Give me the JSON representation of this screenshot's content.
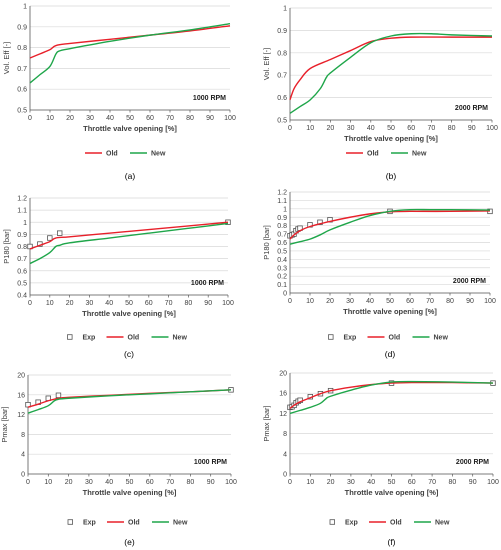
{
  "colors": {
    "old": "#e8202a",
    "new": "#1fa64a",
    "exp": "#555555",
    "grid": "#d9d9d9",
    "axis": "#595959"
  },
  "chart_data": [
    {
      "id": "a",
      "type": "line",
      "caption": "(a)",
      "annotation": "1000 RPM",
      "xlabel": "Throttle valve opening [%]",
      "ylabel": "Vol. Eff [-]",
      "xlim": [
        0,
        100
      ],
      "ylim": [
        0.5,
        1.0
      ],
      "xticks": [
        0,
        10,
        20,
        30,
        40,
        50,
        60,
        70,
        80,
        90,
        100
      ],
      "yticks": [
        0.5,
        0.6,
        0.7,
        0.8,
        0.9,
        1.0
      ],
      "ytick_labels": [
        "0.5",
        "0.6",
        "0.7",
        "0.8",
        "0.9",
        "1"
      ],
      "legend": [
        "Old",
        "New"
      ],
      "legend_position": "bottom",
      "series": [
        {
          "name": "Old",
          "x": [
            0,
            5,
            10,
            13,
            20,
            40,
            60,
            80,
            100
          ],
          "y": [
            0.75,
            0.77,
            0.79,
            0.81,
            0.82,
            0.84,
            0.86,
            0.88,
            0.905
          ]
        },
        {
          "name": "New",
          "x": [
            0,
            5,
            10,
            13,
            15,
            20,
            40,
            60,
            80,
            100
          ],
          "y": [
            0.63,
            0.67,
            0.71,
            0.77,
            0.785,
            0.795,
            0.83,
            0.86,
            0.885,
            0.915
          ]
        }
      ]
    },
    {
      "id": "b",
      "type": "line",
      "caption": "(b)",
      "annotation": "2000 RPM",
      "xlabel": "Throttle valve opening [%]",
      "ylabel": "Vol. Eff [-]",
      "xlim": [
        0,
        100
      ],
      "ylim": [
        0.5,
        1.0
      ],
      "xticks": [
        0,
        10,
        20,
        30,
        40,
        50,
        60,
        70,
        80,
        90,
        100
      ],
      "yticks": [
        0.5,
        0.6,
        0.7,
        0.8,
        0.9,
        1.0
      ],
      "ytick_labels": [
        "0.5",
        "0.6",
        "0.7",
        "0.8",
        "0.9",
        "1"
      ],
      "legend": [
        "Old",
        "New"
      ],
      "legend_position": "bottom",
      "series": [
        {
          "name": "Old",
          "x": [
            0,
            2,
            5,
            10,
            20,
            30,
            40,
            50,
            60,
            80,
            100
          ],
          "y": [
            0.59,
            0.64,
            0.68,
            0.73,
            0.77,
            0.81,
            0.85,
            0.865,
            0.87,
            0.87,
            0.87
          ]
        },
        {
          "name": "New",
          "x": [
            0,
            5,
            10,
            15,
            18,
            20,
            30,
            40,
            50,
            60,
            70,
            80,
            100
          ],
          "y": [
            0.53,
            0.56,
            0.59,
            0.64,
            0.69,
            0.71,
            0.78,
            0.845,
            0.875,
            0.885,
            0.885,
            0.88,
            0.875
          ]
        }
      ]
    },
    {
      "id": "c",
      "type": "line",
      "caption": "(c)",
      "annotation": "1000 RPM",
      "xlabel": "Throttle valve opening [%]",
      "ylabel": "P180 [bar]",
      "xlim": [
        0,
        100
      ],
      "ylim": [
        0.4,
        1.2
      ],
      "xticks": [
        0,
        10,
        20,
        30,
        40,
        50,
        60,
        70,
        80,
        90,
        100
      ],
      "yticks": [
        0.4,
        0.5,
        0.6,
        0.7,
        0.8,
        0.9,
        1.0,
        1.1,
        1.2
      ],
      "ytick_labels": [
        "0.4",
        "0.5",
        "0.6",
        "0.7",
        "0.8",
        "0.9",
        "1",
        "1.1",
        "1.2"
      ],
      "legend": [
        "Exp",
        "Old",
        "New"
      ],
      "legend_position": "bottom",
      "series": [
        {
          "name": "Exp",
          "kind": "markers",
          "x": [
            0,
            5,
            10,
            15,
            100
          ],
          "y": [
            0.8,
            0.82,
            0.87,
            0.91,
            1.0
          ]
        },
        {
          "name": "Old",
          "x": [
            0,
            5,
            10,
            13,
            20,
            40,
            60,
            80,
            100
          ],
          "y": [
            0.78,
            0.81,
            0.84,
            0.87,
            0.88,
            0.91,
            0.94,
            0.97,
            1.0
          ]
        },
        {
          "name": "New",
          "x": [
            0,
            5,
            10,
            13,
            15,
            20,
            40,
            60,
            80,
            100
          ],
          "y": [
            0.66,
            0.7,
            0.75,
            0.8,
            0.81,
            0.83,
            0.87,
            0.91,
            0.95,
            0.99
          ]
        }
      ]
    },
    {
      "id": "d",
      "type": "line",
      "caption": "(d)",
      "annotation": "2000 RPM",
      "xlabel": "Throttle valve opening [%]",
      "ylabel": "P180 [bar]",
      "xlim": [
        0,
        100
      ],
      "ylim": [
        0.0,
        1.2
      ],
      "xticks": [
        0,
        10,
        20,
        30,
        40,
        50,
        60,
        70,
        80,
        90,
        100
      ],
      "yticks": [
        0.0,
        0.1,
        0.2,
        0.3,
        0.4,
        0.5,
        0.6,
        0.7,
        0.8,
        0.9,
        1.0,
        1.1,
        1.2
      ],
      "ytick_labels": [
        "0",
        "0.1",
        "0.2",
        "0.3",
        "0.4",
        "0.5",
        "0.6",
        "0.7",
        "0.8",
        "0.9",
        "1",
        "1.1",
        "1.2"
      ],
      "legend": [
        "Exp",
        "Old",
        "New"
      ],
      "legend_position": "bottom",
      "series": [
        {
          "name": "Exp",
          "kind": "markers",
          "x": [
            0,
            1,
            2,
            3,
            4,
            5,
            10,
            15,
            20,
            50,
            100
          ],
          "y": [
            0.68,
            0.69,
            0.7,
            0.74,
            0.76,
            0.77,
            0.81,
            0.84,
            0.87,
            0.97,
            0.97
          ]
        },
        {
          "name": "Old",
          "x": [
            0,
            2,
            5,
            10,
            20,
            30,
            40,
            50,
            60,
            80,
            100
          ],
          "y": [
            0.64,
            0.69,
            0.74,
            0.79,
            0.85,
            0.9,
            0.94,
            0.965,
            0.97,
            0.97,
            0.975
          ]
        },
        {
          "name": "New",
          "x": [
            0,
            5,
            10,
            15,
            20,
            30,
            40,
            50,
            60,
            70,
            80,
            100
          ],
          "y": [
            0.58,
            0.61,
            0.64,
            0.69,
            0.75,
            0.84,
            0.92,
            0.97,
            0.99,
            0.99,
            0.99,
            0.985
          ]
        }
      ]
    },
    {
      "id": "e",
      "type": "line",
      "caption": "(e)",
      "annotation": "1000 RPM",
      "xlabel": "Throttle valve opening [%]",
      "ylabel": "Pmax [bar]",
      "xlim": [
        0,
        100
      ],
      "ylim": [
        0,
        20
      ],
      "xticks": [
        0,
        10,
        20,
        30,
        40,
        50,
        60,
        70,
        80,
        90,
        100
      ],
      "yticks": [
        0,
        4,
        8,
        12,
        16,
        20
      ],
      "ytick_labels": [
        "0",
        "4",
        "8",
        "12",
        "16",
        "20"
      ],
      "legend": [
        "Exp",
        "Old",
        "New"
      ],
      "legend_position": "bottom",
      "series": [
        {
          "name": "Exp",
          "kind": "markers",
          "x": [
            0,
            5,
            10,
            15,
            100
          ],
          "y": [
            14.0,
            14.5,
            15.3,
            15.9,
            17.0
          ]
        },
        {
          "name": "Old",
          "x": [
            0,
            5,
            10,
            15,
            20,
            40,
            60,
            80,
            100
          ],
          "y": [
            13.5,
            14.1,
            14.8,
            15.3,
            15.5,
            15.9,
            16.3,
            16.6,
            17.0
          ]
        },
        {
          "name": "New",
          "x": [
            0,
            5,
            10,
            13,
            15,
            20,
            40,
            60,
            80,
            100
          ],
          "y": [
            12.3,
            13.0,
            13.8,
            14.8,
            15.1,
            15.3,
            15.8,
            16.2,
            16.6,
            17.0
          ]
        }
      ]
    },
    {
      "id": "f",
      "type": "line",
      "caption": "(f)",
      "annotation": "2000 RPM",
      "xlabel": "Throttle valve opening [%]",
      "ylabel": "Pmax [bar]",
      "xlim": [
        0,
        100
      ],
      "ylim": [
        0,
        20
      ],
      "xticks": [
        0,
        10,
        20,
        30,
        40,
        50,
        60,
        70,
        80,
        90,
        100
      ],
      "yticks": [
        0,
        4,
        8,
        12,
        16,
        20
      ],
      "ytick_labels": [
        "0",
        "4",
        "8",
        "12",
        "16",
        "20"
      ],
      "legend": [
        "Exp",
        "Old",
        "New"
      ],
      "legend_position": "bottom",
      "series": [
        {
          "name": "Exp",
          "kind": "markers",
          "x": [
            0,
            1,
            2,
            3,
            4,
            5,
            10,
            15,
            20,
            50,
            100
          ],
          "y": [
            13.2,
            13.3,
            13.6,
            14.1,
            14.4,
            14.6,
            15.3,
            15.9,
            16.5,
            18.0,
            18.0
          ]
        },
        {
          "name": "Old",
          "x": [
            0,
            2,
            5,
            10,
            15,
            20,
            30,
            40,
            50,
            60,
            80,
            100
          ],
          "y": [
            13.0,
            13.6,
            14.3,
            15.1,
            15.9,
            16.5,
            17.2,
            17.7,
            18.0,
            18.1,
            18.1,
            18.0
          ]
        },
        {
          "name": "New",
          "x": [
            0,
            5,
            10,
            15,
            18,
            20,
            30,
            40,
            50,
            60,
            80,
            100
          ],
          "y": [
            12.0,
            12.6,
            13.2,
            14.0,
            15.0,
            15.4,
            16.6,
            17.6,
            18.2,
            18.3,
            18.2,
            18.0
          ]
        }
      ]
    }
  ]
}
